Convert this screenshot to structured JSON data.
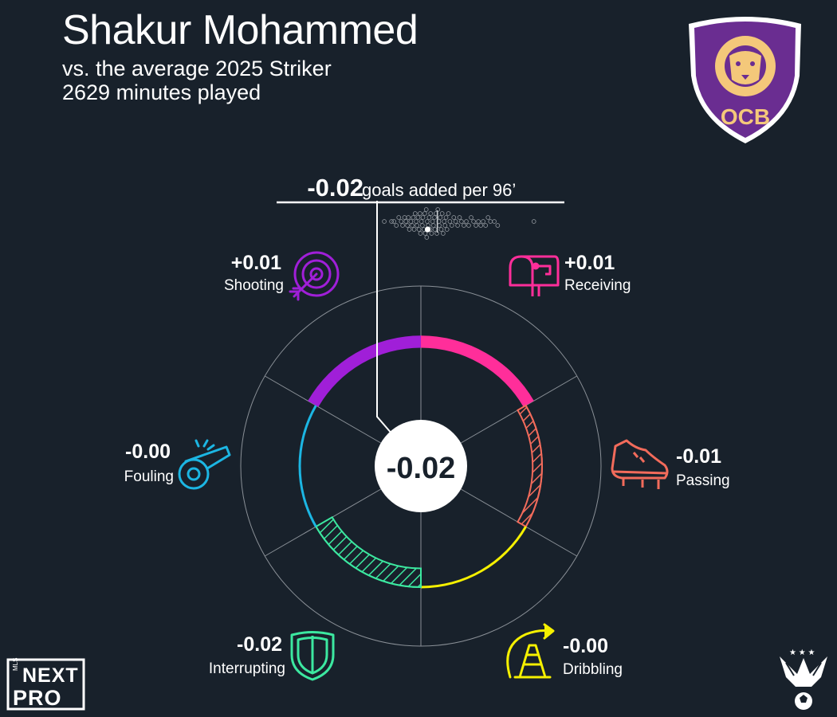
{
  "header": {
    "title": "Shakur Mohammed",
    "subtitle": "vs. the average 2025 Striker",
    "minutes": "2629 minutes played"
  },
  "icons": {
    "club_logo": "orlando-city-b-crest-icon",
    "league_logo": "mls-next-pro-logo-icon",
    "eagle_logo": "eagle-soccer-ball-icon",
    "shooting": "target-arrow-icon",
    "receiving": "mailbox-icon",
    "passing": "cleat-icon",
    "dribbling": "cone-arrow-icon",
    "interrupting": "shield-icon",
    "fouling": "whistle-icon"
  },
  "colors": {
    "background": "#18212b",
    "shooting": "#a01fd8",
    "receiving": "#ff2e9a",
    "passing": "#f26b5b",
    "dribbling": "#f5f000",
    "interrupting": "#3ce8a0",
    "fouling": "#1cb6e3",
    "club_purple": "#6a2d91",
    "club_gold": "#f4c87a"
  },
  "logos": {
    "club_text": "OCB",
    "league_small": "MLS",
    "league_line1": "NEXT",
    "league_line2": "PRO"
  },
  "chart_data": {
    "type": "radial-bar",
    "total": {
      "value": "-0.02",
      "label": "goals added per 96’",
      "center_value": "-0.02"
    },
    "categories": [
      {
        "name": "Receiving",
        "value": 0.01,
        "label": "+0.01",
        "color": "#ff2e9a"
      },
      {
        "name": "Passing",
        "value": -0.01,
        "label": "-0.01",
        "color": "#f26b5b"
      },
      {
        "name": "Dribbling",
        "value": -0.0,
        "label": "-0.00",
        "color": "#f5f000"
      },
      {
        "name": "Interrupting",
        "value": -0.02,
        "label": "-0.02",
        "color": "#3ce8a0"
      },
      {
        "name": "Fouling",
        "value": -0.0,
        "label": "-0.00",
        "color": "#1cb6e3"
      },
      {
        "name": "Shooting",
        "value": 0.01,
        "label": "+0.01",
        "color": "#a01fd8"
      }
    ],
    "distribution": {
      "xlim": [
        -0.12,
        0.25
      ],
      "player_value": -0.02,
      "average": 0.0,
      "values": [
        -0.11,
        -0.095,
        -0.09,
        -0.085,
        -0.08,
        -0.075,
        -0.072,
        -0.068,
        -0.065,
        -0.062,
        -0.06,
        -0.058,
        -0.055,
        -0.052,
        -0.05,
        -0.048,
        -0.046,
        -0.044,
        -0.042,
        -0.04,
        -0.038,
        -0.036,
        -0.035,
        -0.033,
        -0.031,
        -0.03,
        -0.028,
        -0.026,
        -0.025,
        -0.023,
        -0.022,
        -0.021,
        -0.019,
        -0.017,
        -0.015,
        -0.014,
        -0.012,
        -0.01,
        -0.008,
        -0.006,
        -0.005,
        -0.003,
        -0.001,
        0.001,
        0.003,
        0.004,
        0.006,
        0.008,
        0.01,
        0.012,
        0.014,
        0.016,
        0.018,
        0.02,
        0.023,
        0.026,
        0.03,
        0.034,
        0.038,
        0.042,
        0.046,
        0.05,
        0.055,
        0.06,
        0.065,
        0.07,
        0.075,
        0.08,
        0.085,
        0.09,
        0.095,
        0.1,
        0.105,
        0.11,
        0.118,
        0.125,
        0.2
      ]
    },
    "rlim": [
      -0.08,
      0.05
    ]
  }
}
